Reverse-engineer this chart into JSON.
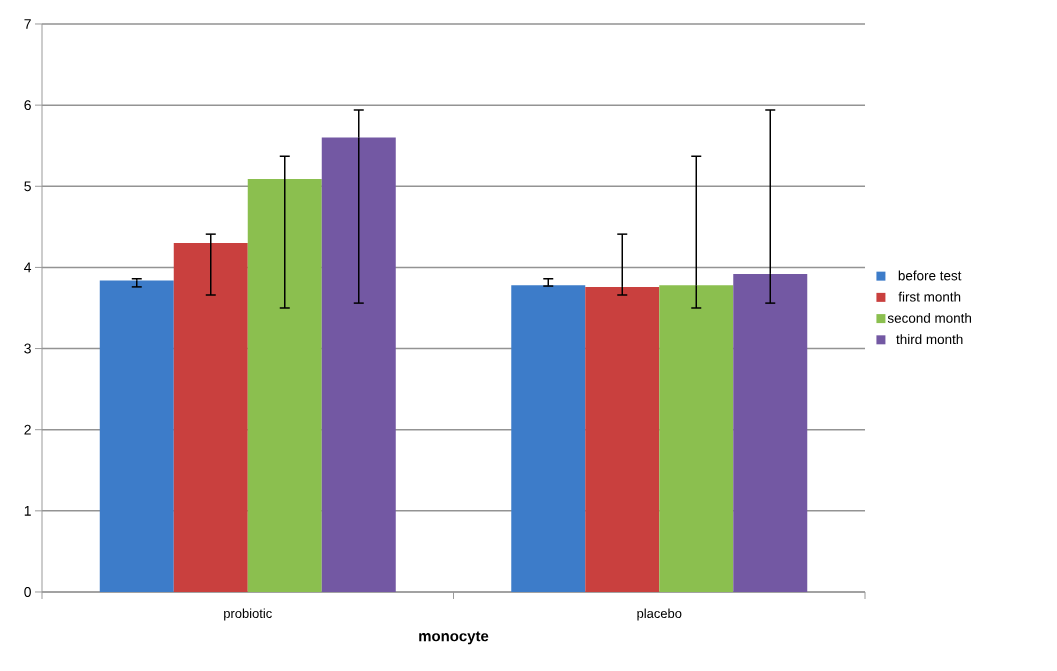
{
  "chart_data": {
    "type": "bar",
    "xlabel": "monocyte",
    "categories": [
      "probiotic",
      "placebo"
    ],
    "series": [
      {
        "name": "before test",
        "color": "#3d7cc9",
        "values": [
          3.84,
          3.78
        ],
        "errors": [
          [
            3.76,
            3.86
          ],
          [
            3.77,
            3.86
          ]
        ]
      },
      {
        "name": "first month",
        "color": "#c9403e",
        "values": [
          4.3,
          3.76
        ],
        "errors": [
          [
            3.66,
            4.41
          ],
          [
            3.66,
            4.41
          ]
        ]
      },
      {
        "name": "second month",
        "color": "#8bbf4f",
        "values": [
          5.09,
          3.78
        ],
        "errors": [
          [
            3.5,
            5.37
          ],
          [
            3.5,
            5.37
          ]
        ]
      },
      {
        "name": "third month",
        "color": "#7358a3",
        "values": [
          5.6,
          3.92
        ],
        "errors": [
          [
            3.56,
            5.94
          ],
          [
            3.56,
            5.94
          ]
        ]
      }
    ],
    "ylim": [
      0,
      7
    ],
    "yticks": [
      0,
      1,
      2,
      3,
      4,
      5,
      6,
      7
    ],
    "grid": "y",
    "legend": "right"
  }
}
